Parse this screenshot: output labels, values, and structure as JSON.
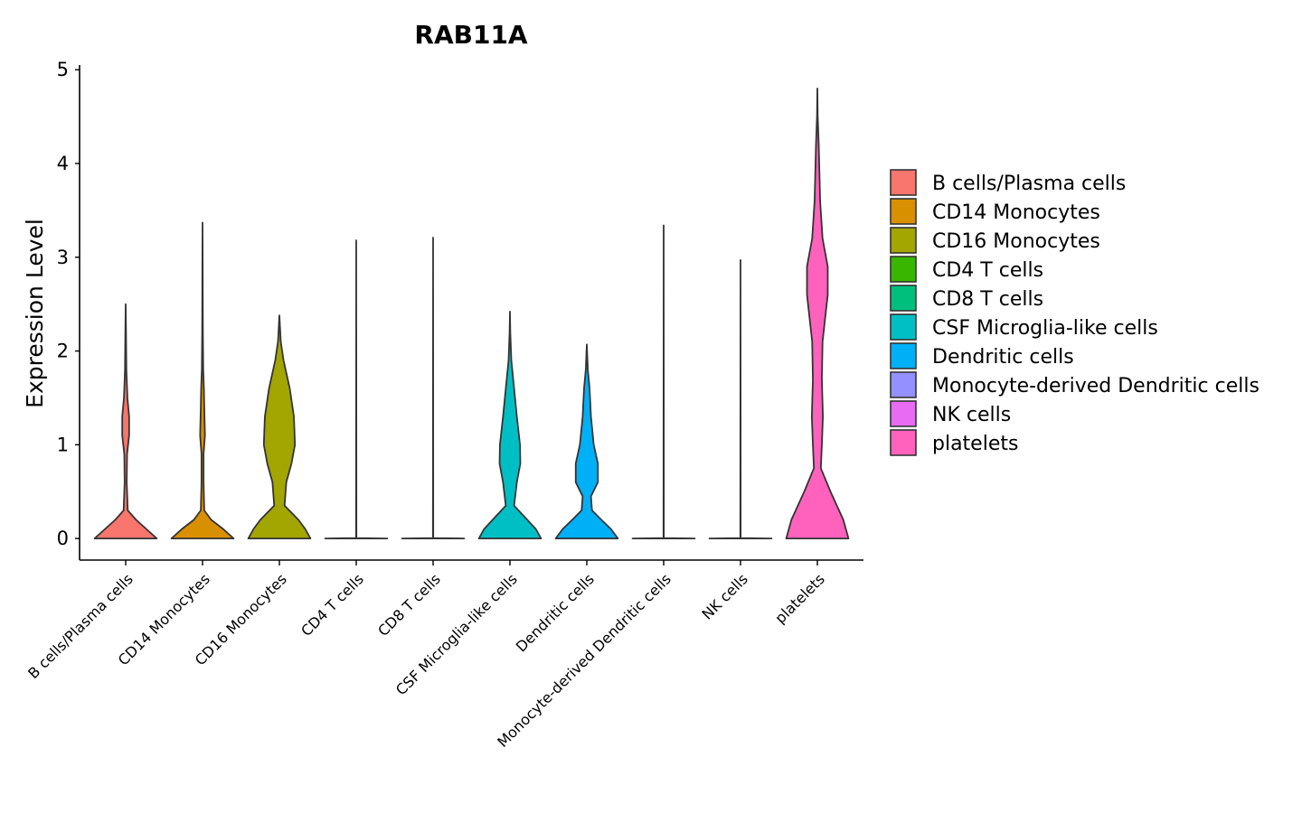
{
  "chart_data": {
    "type": "violin",
    "title": "RAB11A",
    "xlabel": "",
    "ylabel": "Expression Level",
    "ylim": [
      -0.23,
      5.05
    ],
    "yticks": [
      "0",
      "1",
      "2",
      "3",
      "4",
      "5"
    ],
    "legend_position": "right",
    "categories": [
      "B cells/Plasma cells",
      "CD14 Monocytes",
      "CD16 Monocytes",
      "CD4 T cells",
      "CD8 T cells",
      "CSF Microglia-like cells",
      "Dendritic cells",
      "Monocyte-derived Dendritic cells",
      "NK cells",
      "platelets"
    ],
    "colors": [
      "#F8766D",
      "#D89000",
      "#A3A500",
      "#39B600",
      "#00BF7D",
      "#00BFC4",
      "#00B0F6",
      "#9590FF",
      "#E76BF3",
      "#FF62BC"
    ],
    "violins": [
      {
        "max": 2.5,
        "density": [
          [
            0,
            0.9
          ],
          [
            0.1,
            0.6
          ],
          [
            0.2,
            0.3
          ],
          [
            0.3,
            0.06
          ],
          [
            0.6,
            0.03
          ],
          [
            0.9,
            0.04
          ],
          [
            1.1,
            0.1
          ],
          [
            1.3,
            0.1
          ],
          [
            1.5,
            0.05
          ],
          [
            1.8,
            0.02
          ],
          [
            2.2,
            0.01
          ],
          [
            2.5,
            0
          ]
        ]
      },
      {
        "max": 3.37,
        "density": [
          [
            0,
            0.9
          ],
          [
            0.1,
            0.6
          ],
          [
            0.2,
            0.25
          ],
          [
            0.3,
            0.05
          ],
          [
            0.6,
            0.03
          ],
          [
            0.9,
            0.03
          ],
          [
            1.1,
            0.07
          ],
          [
            1.4,
            0.05
          ],
          [
            1.6,
            0.04
          ],
          [
            1.8,
            0.02
          ],
          [
            2.2,
            0.01
          ],
          [
            3.37,
            0
          ]
        ]
      },
      {
        "max": 2.38,
        "density": [
          [
            0,
            0.9
          ],
          [
            0.1,
            0.75
          ],
          [
            0.2,
            0.55
          ],
          [
            0.35,
            0.15
          ],
          [
            0.6,
            0.2
          ],
          [
            0.8,
            0.35
          ],
          [
            1.0,
            0.45
          ],
          [
            1.3,
            0.42
          ],
          [
            1.6,
            0.3
          ],
          [
            1.9,
            0.12
          ],
          [
            2.1,
            0.04
          ],
          [
            2.38,
            0
          ]
        ]
      },
      {
        "max": 3.18,
        "density": [
          [
            0,
            0.9
          ],
          [
            0.005,
            0.004
          ],
          [
            0.05,
            0.005
          ],
          [
            3.18,
            0
          ]
        ]
      },
      {
        "max": 3.21,
        "density": [
          [
            0,
            0.9
          ],
          [
            0.005,
            0.004
          ],
          [
            0.05,
            0.005
          ],
          [
            3.21,
            0
          ]
        ]
      },
      {
        "max": 2.42,
        "density": [
          [
            0,
            0.9
          ],
          [
            0.1,
            0.75
          ],
          [
            0.2,
            0.5
          ],
          [
            0.35,
            0.12
          ],
          [
            0.6,
            0.2
          ],
          [
            0.8,
            0.3
          ],
          [
            1.0,
            0.29
          ],
          [
            1.3,
            0.2
          ],
          [
            1.6,
            0.12
          ],
          [
            1.9,
            0.04
          ],
          [
            2.2,
            0.01
          ],
          [
            2.42,
            0
          ]
        ]
      },
      {
        "max": 2.07,
        "density": [
          [
            0,
            0.9
          ],
          [
            0.1,
            0.7
          ],
          [
            0.2,
            0.42
          ],
          [
            0.3,
            0.15
          ],
          [
            0.45,
            0.12
          ],
          [
            0.6,
            0.32
          ],
          [
            0.8,
            0.32
          ],
          [
            1.0,
            0.2
          ],
          [
            1.3,
            0.12
          ],
          [
            1.6,
            0.08
          ],
          [
            1.8,
            0.03
          ],
          [
            2.07,
            0
          ]
        ]
      },
      {
        "max": 3.34,
        "density": [
          [
            0,
            0.9
          ],
          [
            0.005,
            0.004
          ],
          [
            0.05,
            0.005
          ],
          [
            3.34,
            0
          ]
        ]
      },
      {
        "max": 2.97,
        "density": [
          [
            0,
            0.9
          ],
          [
            0.005,
            0.004
          ],
          [
            0.05,
            0.005
          ],
          [
            2.97,
            0
          ]
        ]
      },
      {
        "max": 4.8,
        "density": [
          [
            0,
            0.9
          ],
          [
            0.2,
            0.75
          ],
          [
            0.5,
            0.38
          ],
          [
            0.75,
            0.1
          ],
          [
            1.0,
            0.13
          ],
          [
            1.3,
            0.16
          ],
          [
            1.7,
            0.13
          ],
          [
            2.1,
            0.15
          ],
          [
            2.6,
            0.3
          ],
          [
            2.9,
            0.3
          ],
          [
            3.2,
            0.15
          ],
          [
            3.6,
            0.08
          ],
          [
            4.2,
            0.04
          ],
          [
            4.5,
            0.01
          ],
          [
            4.8,
            0
          ]
        ]
      }
    ]
  }
}
